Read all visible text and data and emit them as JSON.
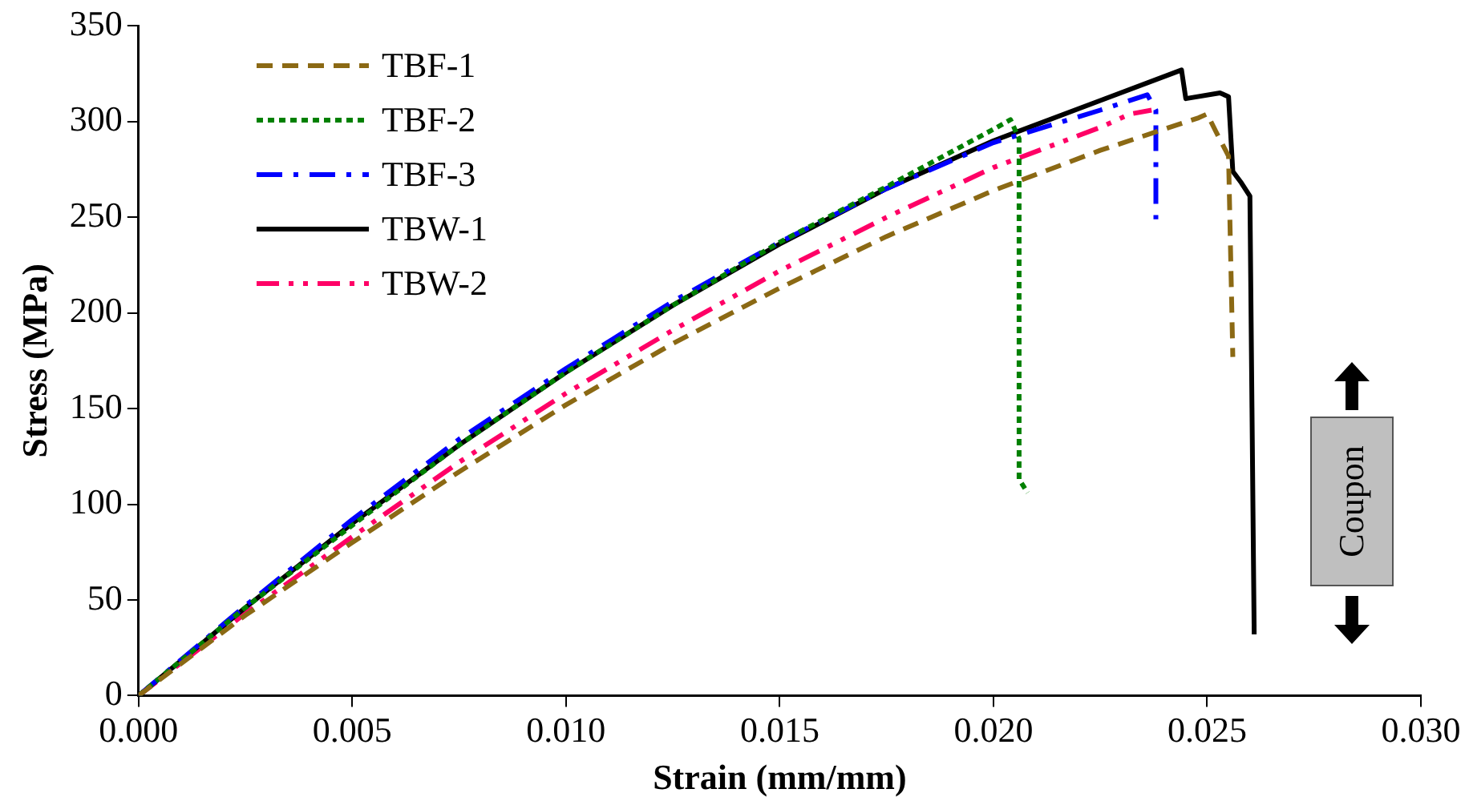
{
  "chart_data": {
    "type": "line",
    "xlabel": "Strain (mm/mm)",
    "ylabel": "Stress (MPa)",
    "xlim": [
      0,
      0.03
    ],
    "xticks": [
      {
        "value": 0,
        "label": "0.000"
      },
      {
        "value": 0.005,
        "label": "0.005"
      },
      {
        "value": 0.01,
        "label": "0.010"
      },
      {
        "value": 0.015,
        "label": "0.015"
      },
      {
        "value": 0.02,
        "label": "0.020"
      },
      {
        "value": 0.025,
        "label": "0.025"
      },
      {
        "value": 0.03,
        "label": "0.030"
      }
    ],
    "ylim": [
      0,
      350
    ],
    "yticks": [
      0,
      50,
      100,
      150,
      200,
      250,
      300,
      350
    ],
    "grid": false,
    "legend": "top left",
    "marker": "none",
    "annotations": [
      "Coupon"
    ],
    "series": [
      {
        "name": "TBF-1",
        "color": "#8b6914",
        "line_style": "dashed",
        "x": [
          0,
          0.0025,
          0.005,
          0.0075,
          0.01,
          0.0125,
          0.015,
          0.0175,
          0.02,
          0.0225,
          0.0248,
          0.025,
          0.0252,
          0.0255,
          0.0256
        ],
        "values": [
          0,
          42,
          80,
          117,
          152,
          184,
          213,
          240,
          264,
          285,
          302,
          304,
          295,
          282,
          177
        ]
      },
      {
        "name": "TBF-2",
        "color": "#008000",
        "line_style": "dotted",
        "x": [
          0,
          0.0025,
          0.005,
          0.0075,
          0.01,
          0.0125,
          0.015,
          0.0175,
          0.02,
          0.0204,
          0.0206,
          0.0206,
          0.0208
        ],
        "values": [
          0,
          46,
          89,
          131,
          169,
          204,
          237,
          266,
          296,
          301,
          291,
          113,
          106
        ]
      },
      {
        "name": "TBF-3",
        "color": "#0000ff",
        "line_style": "dashdot",
        "x": [
          0,
          0.0025,
          0.005,
          0.0075,
          0.01,
          0.0125,
          0.015,
          0.0175,
          0.02,
          0.0225,
          0.0236,
          0.0238,
          0.0238
        ],
        "values": [
          0,
          47,
          92,
          134,
          171,
          206,
          237,
          265,
          289,
          306,
          314,
          306,
          249
        ]
      },
      {
        "name": "TBW-1",
        "color": "#000000",
        "line_style": "solid",
        "x": [
          0,
          0.0025,
          0.005,
          0.0075,
          0.01,
          0.0125,
          0.015,
          0.0175,
          0.02,
          0.0225,
          0.0244,
          0.0245,
          0.0253,
          0.0255,
          0.0256,
          0.0258,
          0.026,
          0.0261
        ],
        "values": [
          0,
          46,
          90,
          131,
          169,
          204,
          236,
          265,
          290,
          311,
          327,
          312,
          315,
          313,
          274,
          268,
          261,
          32
        ]
      },
      {
        "name": "TBW-2",
        "color": "#ff0066",
        "line_style": "dashdotdot",
        "x": [
          0,
          0.0025,
          0.005,
          0.0075,
          0.01,
          0.0125,
          0.015,
          0.0175,
          0.02,
          0.0225,
          0.0232,
          0.0237
        ],
        "values": [
          0,
          43,
          83,
          122,
          158,
          191,
          222,
          250,
          276,
          297,
          304,
          306
        ]
      }
    ]
  }
}
